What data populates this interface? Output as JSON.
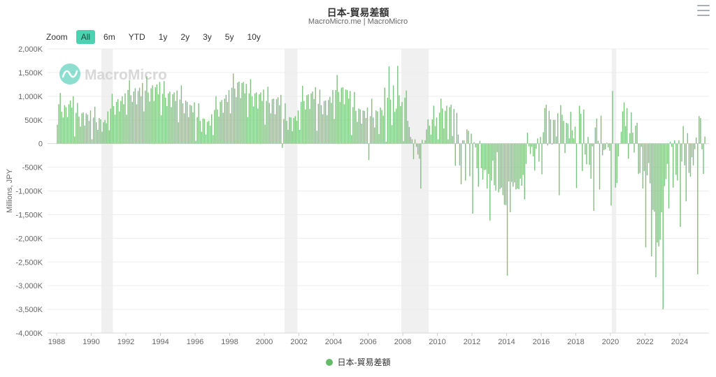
{
  "header": {
    "title": "日本-貿易差額",
    "subtitle": "MacroMicro.me | MacroMicro"
  },
  "toolbar": {
    "zoom_label": "Zoom",
    "buttons": [
      "All",
      "6m",
      "YTD",
      "1y",
      "2y",
      "3y",
      "5y",
      "10y"
    ],
    "selected": "All",
    "selected_bg": "#4bd2b0"
  },
  "watermark": {
    "text": "MacroMicro",
    "circle_color": "#2ec4a5"
  },
  "legend": {
    "label": "日本-貿易差額",
    "color": "#66bb6a"
  },
  "colors": {
    "bar": "#7cc17e",
    "gridline": "#ededed",
    "zero_line": "#d9d9d9",
    "axis_label": "#666666",
    "recession_band": "#f0f0f0",
    "axis_line": "#d9d9d9"
  },
  "chart_data": {
    "type": "bar",
    "title": "日本-貿易差額",
    "series_name": "日本-貿易差額",
    "xlabel": "",
    "ylabel": "Millions, JPY",
    "value_unit": "thousands of millions JPY (axis shows K)",
    "ylim": [
      -4000,
      2000
    ],
    "ytick_step": 500,
    "ytick_labels": [
      "2,000K",
      "1,500K",
      "1,000K",
      "500K",
      "0",
      "-500K",
      "-1,000K",
      "-1,500K",
      "-2,000K",
      "-2,500K",
      "-3,000K",
      "-3,500K",
      "-4,000K"
    ],
    "xticks": [
      1988,
      1990,
      1992,
      1994,
      1996,
      1998,
      2000,
      2002,
      2004,
      2006,
      2008,
      2010,
      2012,
      2014,
      2016,
      2018,
      2020,
      2022,
      2024
    ],
    "frequency": "monthly",
    "x_start": {
      "year": 1988,
      "month": 1
    },
    "x_end": {
      "year": 2025,
      "month": 6
    },
    "grid": true,
    "legend_position": "bottom",
    "recession_bands_years": [
      [
        1990.58,
        1991.25
      ],
      [
        2001.17,
        2001.92
      ],
      [
        2007.92,
        2009.5
      ],
      [
        2020.08,
        2020.33
      ]
    ],
    "values": [
      400,
      830,
      1070,
      670,
      550,
      810,
      770,
      560,
      830,
      910,
      760,
      1000,
      150,
      650,
      860,
      570,
      360,
      640,
      660,
      380,
      640,
      610,
      480,
      700,
      90,
      550,
      780,
      450,
      290,
      540,
      510,
      250,
      450,
      500,
      430,
      680,
      280,
      740,
      1050,
      790,
      610,
      880,
      940,
      680,
      900,
      1000,
      830,
      1060,
      610,
      1130,
      1340,
      1020,
      880,
      1100,
      1170,
      830,
      1110,
      1180,
      1000,
      1280,
      680,
      1120,
      1420,
      1080,
      890,
      1170,
      1230,
      900,
      1190,
      1250,
      1040,
      1300,
      600,
      1050,
      1320,
      970,
      790,
      1060,
      1100,
      770,
      1040,
      1080,
      900,
      1120,
      450,
      930,
      1230,
      850,
      640,
      910,
      880,
      560,
      820,
      800,
      660,
      870,
      60,
      560,
      850,
      480,
      250,
      530,
      520,
      190,
      460,
      480,
      380,
      620,
      180,
      710,
      1000,
      720,
      570,
      880,
      920,
      650,
      950,
      1030,
      880,
      1130,
      640,
      1180,
      1480,
      1160,
      980,
      1290,
      1310,
      960,
      1280,
      1300,
      1060,
      1260,
      560,
      1060,
      1360,
      1000,
      780,
      1060,
      1080,
      740,
      1040,
      1080,
      900,
      1140,
      400,
      900,
      1200,
      860,
      640,
      940,
      950,
      620,
      940,
      980,
      810,
      1030,
      -90,
      520,
      850,
      480,
      290,
      560,
      550,
      260,
      540,
      580,
      480,
      700,
      290,
      880,
      1220,
      900,
      720,
      1020,
      1040,
      730,
      1060,
      1100,
      940,
      1190,
      270,
      840,
      1140,
      810,
      620,
      900,
      910,
      600,
      920,
      990,
      860,
      1130,
      520,
      1130,
      1450,
      1090,
      880,
      1180,
      1190,
      830,
      1140,
      1130,
      950,
      1110,
      180,
      770,
      1090,
      690,
      460,
      740,
      720,
      420,
      700,
      690,
      540,
      760,
      -350,
      580,
      950,
      550,
      340,
      700,
      680,
      200,
      760,
      710,
      590,
      1180,
      40,
      970,
      1630,
      930,
      390,
      1230,
      670,
      740,
      1640,
      1020,
      790,
      880,
      50,
      970,
      1120,
      480,
      350,
      140,
      90,
      -330,
      90,
      -70,
      -230,
      -320,
      -950,
      80,
      10,
      70,
      300,
      510,
      380,
      190,
      510,
      800,
      370,
      550,
      90,
      650,
      950,
      740,
      320,
      690,
      800,
      90,
      770,
      820,
      160,
      730,
      -470,
      650,
      190,
      -460,
      -860,
      70,
      70,
      -780,
      300,
      270,
      -690,
      210,
      -1480,
      30,
      -80,
      -520,
      -910,
      60,
      -520,
      -760,
      -560,
      -550,
      -950,
      -640,
      -1630,
      -780,
      -360,
      -880,
      -990,
      -180,
      -1030,
      -960,
      -930,
      -1090,
      -1290,
      -1300,
      -2790,
      -800,
      -1450,
      -810,
      -910,
      -820,
      -970,
      -950,
      -960,
      -740,
      -890,
      -660,
      -1180,
      -430,
      230,
      -60,
      -220,
      -70,
      -270,
      -570,
      -110,
      110,
      -380,
      140,
      -650,
      240,
      750,
      820,
      -40,
      690,
      510,
      -20,
      500,
      500,
      150,
      640,
      -1090,
      810,
      610,
      480,
      -200,
      440,
      420,
      110,
      670,
      280,
      110,
      360,
      -940,
      0,
      800,
      630,
      -580,
      720,
      -230,
      -440,
      140,
      -450,
      -740,
      -60,
      -1420,
      340,
      530,
      60,
      -970,
      590,
      -250,
      -140,
      -120,
      20,
      -80,
      -150,
      -1310,
      1110,
      0,
      -930,
      -830,
      -270,
      10,
      250,
      680,
      870,
      370,
      750,
      -320,
      220,
      660,
      230,
      -190,
      380,
      440,
      -640,
      -620,
      -70,
      -950,
      -580,
      -2190,
      -670,
      -410,
      -840,
      -2380,
      -1400,
      -1440,
      -2820,
      -2090,
      -2170,
      -2030,
      -1450,
      -3500,
      -900,
      -750,
      -430,
      -1370,
      40,
      -70,
      -930,
      70,
      -660,
      -780,
      70,
      -1760,
      -380,
      370,
      -460,
      -1220,
      220,
      -620,
      -700,
      -290,
      -460,
      -120,
      130,
      -2760,
      580,
      540,
      -120,
      -640,
      150
    ]
  }
}
